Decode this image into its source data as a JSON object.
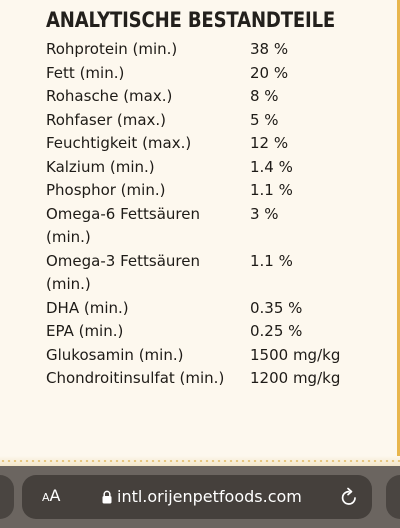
{
  "section": {
    "title": "ANALYTISCHE BESTANDTEILE"
  },
  "rows": [
    {
      "nutrient": "Rohprotein (min.)",
      "value": "38 %"
    },
    {
      "nutrient": "Fett (min.)",
      "value": "20 %"
    },
    {
      "nutrient": "Rohasche (max.)",
      "value": "8 %"
    },
    {
      "nutrient": "Rohfaser (max.)",
      "value": "5 %"
    },
    {
      "nutrient": "Feuchtigkeit (max.)",
      "value": "12 %"
    },
    {
      "nutrient": "Kalzium (min.)",
      "value": "1.4 %"
    },
    {
      "nutrient": "Phosphor (min.)",
      "value": "1.1 %"
    },
    {
      "nutrient": "Omega-6 Fettsäuren (min.)",
      "value": "3 %"
    },
    {
      "nutrient": "Omega-3 Fettsäuren (min.)",
      "value": "1.1 %"
    },
    {
      "nutrient": "DHA (min.)",
      "value": "0.35 %"
    },
    {
      "nutrient": "EPA (min.)",
      "value": "0.25 %"
    },
    {
      "nutrient": "Glukosamin (min.)",
      "value": "1500 mg/kg"
    },
    {
      "nutrient": "Chondroitinsulfat (min.)",
      "value": "1200 mg/kg"
    }
  ],
  "toolbar": {
    "text_size_small": "A",
    "text_size_big": "A",
    "url": "intl.orijenpetfoods.com",
    "icons": {
      "text_size": "text-size-icon",
      "lock": "lock-icon",
      "reload": "reload-icon"
    }
  },
  "colors": {
    "page_background": "#fdf8ee",
    "text": "#1e1b17",
    "accent": "#e8b64d",
    "toolbar_background": "#6b6560",
    "address_bar": "#45403c"
  }
}
